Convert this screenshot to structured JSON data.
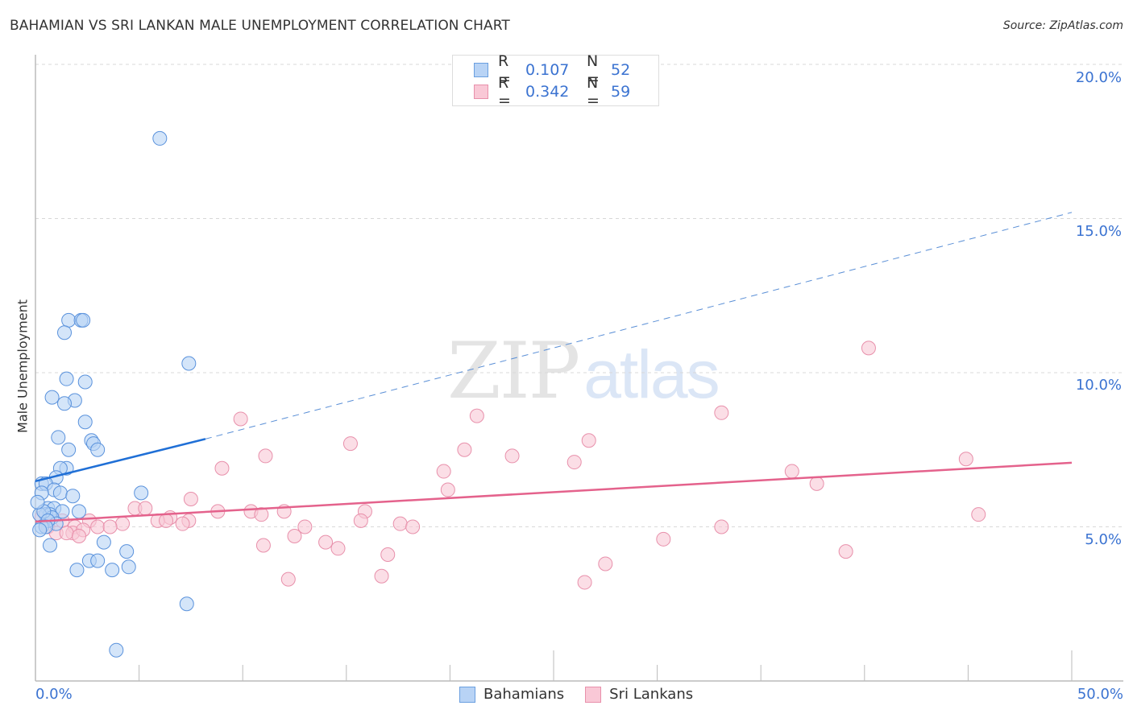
{
  "header": {
    "title": "BAHAMIAN VS SRI LANKAN MALE UNEMPLOYMENT CORRELATION CHART",
    "source": "Source: ZipAtlas.com"
  },
  "watermark": {
    "zip": "ZIP",
    "atlas": "atlas"
  },
  "legend": {
    "rows": [
      {
        "series": "Bahamians",
        "r_label": "R =",
        "r_value": "0.107",
        "n_label": "N =",
        "n_value": "52",
        "fill": "#b8d3f5",
        "stroke": "#6a9fe0"
      },
      {
        "series": "Sri Lankans",
        "r_label": "R =",
        "r_value": "0.342",
        "n_label": "N =",
        "n_value": "59",
        "fill": "#f9c8d6",
        "stroke": "#e890ab"
      }
    ]
  },
  "bottom_legend": [
    {
      "label": "Bahamians",
      "fill": "#b8d3f5",
      "stroke": "#6a9fe0"
    },
    {
      "label": "Sri Lankans",
      "fill": "#f9c8d6",
      "stroke": "#e890ab"
    }
  ],
  "axes": {
    "y_label": "Male Unemployment",
    "x_min_label": "0.0%",
    "x_max_label": "50.0%",
    "y_ticks": [
      "20.0%",
      "15.0%",
      "10.0%",
      "5.0%"
    ]
  },
  "colors": {
    "blue": "#3b73d1",
    "blue_line": "#1f6fd6",
    "pink_line": "#e4628c",
    "grid": "#d8d8d8",
    "axis": "#bbbbbb"
  },
  "chart_data": {
    "type": "scatter",
    "title": "BAHAMIAN VS SRI LANKAN MALE UNEMPLOYMENT CORRELATION CHART",
    "xlabel": "",
    "ylabel": "Male Unemployment",
    "xlim": [
      0,
      50
    ],
    "ylim": [
      0,
      20
    ],
    "x_ticks": [
      0,
      5,
      10,
      15,
      20,
      25,
      30,
      35,
      40,
      45,
      50
    ],
    "y_ticks": [
      5,
      10,
      15,
      20
    ],
    "grid": "horizontal dashed",
    "legend_position": "top-center and bottom",
    "series": [
      {
        "name": "Bahamians",
        "R": 0.107,
        "N": 52,
        "trend": {
          "x": [
            0,
            8.2,
            50
          ],
          "y": [
            6.48,
            7.85,
            15.2
          ],
          "solid_until": 8.2
        },
        "points": [
          [
            6.0,
            17.6
          ],
          [
            1.6,
            11.7
          ],
          [
            2.2,
            11.7
          ],
          [
            2.3,
            11.7
          ],
          [
            1.4,
            11.3
          ],
          [
            7.4,
            10.3
          ],
          [
            1.5,
            9.8
          ],
          [
            2.4,
            9.7
          ],
          [
            0.8,
            9.2
          ],
          [
            1.9,
            9.1
          ],
          [
            1.4,
            9.0
          ],
          [
            2.4,
            8.4
          ],
          [
            1.1,
            7.9
          ],
          [
            2.7,
            7.8
          ],
          [
            2.8,
            7.7
          ],
          [
            1.6,
            7.5
          ],
          [
            3.0,
            7.5
          ],
          [
            1.5,
            6.9
          ],
          [
            1.2,
            6.9
          ],
          [
            1.0,
            6.6
          ],
          [
            0.3,
            6.4
          ],
          [
            0.5,
            6.4
          ],
          [
            0.9,
            6.2
          ],
          [
            1.2,
            6.1
          ],
          [
            0.3,
            6.1
          ],
          [
            1.8,
            6.0
          ],
          [
            5.1,
            6.1
          ],
          [
            0.6,
            5.6
          ],
          [
            0.9,
            5.6
          ],
          [
            1.3,
            5.5
          ],
          [
            2.1,
            5.5
          ],
          [
            0.5,
            5.4
          ],
          [
            0.7,
            5.4
          ],
          [
            0.8,
            5.3
          ],
          [
            0.2,
            5.4
          ],
          [
            0.4,
            5.5
          ],
          [
            1.0,
            5.1
          ],
          [
            0.6,
            5.2
          ],
          [
            0.3,
            5.0
          ],
          [
            0.5,
            5.0
          ],
          [
            0.2,
            4.9
          ],
          [
            0.7,
            4.4
          ],
          [
            3.3,
            4.5
          ],
          [
            4.4,
            4.2
          ],
          [
            2.6,
            3.9
          ],
          [
            3.0,
            3.9
          ],
          [
            2.0,
            3.6
          ],
          [
            3.7,
            3.6
          ],
          [
            4.5,
            3.7
          ],
          [
            7.3,
            2.5
          ],
          [
            3.9,
            1.0
          ],
          [
            0.1,
            5.8
          ]
        ]
      },
      {
        "name": "Sri Lankans",
        "R": 0.342,
        "N": 59,
        "trend": {
          "x": [
            0,
            50
          ],
          "y": [
            5.17,
            7.08
          ]
        },
        "points": [
          [
            40.2,
            10.8
          ],
          [
            9.9,
            8.5
          ],
          [
            21.3,
            8.6
          ],
          [
            33.1,
            8.7
          ],
          [
            15.2,
            7.7
          ],
          [
            26.7,
            7.8
          ],
          [
            11.1,
            7.3
          ],
          [
            20.7,
            7.5
          ],
          [
            23.0,
            7.3
          ],
          [
            26.0,
            7.1
          ],
          [
            44.9,
            7.2
          ],
          [
            9.0,
            6.9
          ],
          [
            19.7,
            6.8
          ],
          [
            36.5,
            6.8
          ],
          [
            37.7,
            6.4
          ],
          [
            19.9,
            6.2
          ],
          [
            7.5,
            5.9
          ],
          [
            4.8,
            5.6
          ],
          [
            5.3,
            5.6
          ],
          [
            8.8,
            5.5
          ],
          [
            10.4,
            5.5
          ],
          [
            12.0,
            5.5
          ],
          [
            15.9,
            5.5
          ],
          [
            45.5,
            5.4
          ],
          [
            10.9,
            5.4
          ],
          [
            6.5,
            5.3
          ],
          [
            5.9,
            5.2
          ],
          [
            6.3,
            5.2
          ],
          [
            2.6,
            5.2
          ],
          [
            4.2,
            5.1
          ],
          [
            7.4,
            5.2
          ],
          [
            15.7,
            5.2
          ],
          [
            17.6,
            5.1
          ],
          [
            7.1,
            5.1
          ],
          [
            3.0,
            5.0
          ],
          [
            1.3,
            5.2
          ],
          [
            1.9,
            5.0
          ],
          [
            0.6,
            5.0
          ],
          [
            13.0,
            5.0
          ],
          [
            18.2,
            5.0
          ],
          [
            33.1,
            5.0
          ],
          [
            1.8,
            4.8
          ],
          [
            2.3,
            4.9
          ],
          [
            3.6,
            5.0
          ],
          [
            1.0,
            4.8
          ],
          [
            1.5,
            4.8
          ],
          [
            2.1,
            4.7
          ],
          [
            12.5,
            4.7
          ],
          [
            30.3,
            4.6
          ],
          [
            14.0,
            4.5
          ],
          [
            11.0,
            4.4
          ],
          [
            14.6,
            4.3
          ],
          [
            17.0,
            4.1
          ],
          [
            39.1,
            4.2
          ],
          [
            27.5,
            3.8
          ],
          [
            16.7,
            3.4
          ],
          [
            12.2,
            3.3
          ],
          [
            26.5,
            3.2
          ],
          [
            0.3,
            5.3
          ]
        ]
      }
    ]
  }
}
